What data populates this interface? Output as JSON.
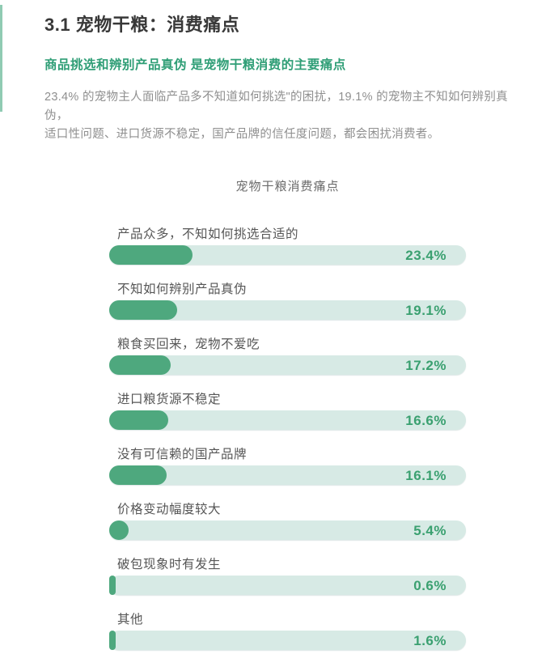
{
  "header": {
    "title": "3.1 宠物干粮：消费痛点",
    "subtitle": "商品挑选和辨别产品真伪 是宠物干粮消费的主要痛点",
    "body_line1": "23.4% 的宠物主人面临产品多不知道如何挑选\"的困扰，19.1% 的宠物主不知如何辨别真伪，",
    "body_line2": "适口性问题、进口货源不稳定，国产品牌的信任度问题，都会困扰消费者。"
  },
  "chart_data": {
    "type": "bar",
    "orientation": "horizontal",
    "title": "宠物干粮消费痛点",
    "categories": [
      "产品众多，不知如何挑选合适的",
      "不知如何辨别产品真伪",
      "粮食买回来，宠物不爱吃",
      "进口粮货源不稳定",
      "没有可信赖的国产品牌",
      "价格变动幅度较大",
      "破包现象时有发生",
      "其他"
    ],
    "values": [
      23.4,
      19.1,
      17.2,
      16.6,
      16.1,
      5.4,
      0.6,
      1.6
    ],
    "value_labels": [
      "23.4%",
      "19.1%",
      "17.2%",
      "16.6%",
      "16.1%",
      "5.4%",
      "0.6%",
      "1.6%"
    ],
    "xlim": [
      0,
      100
    ],
    "grid": false,
    "legend": false,
    "colors": {
      "bar_fill": "#4ea87e",
      "bar_track": "#d7eae5",
      "value_label": "#3aa070",
      "accent": "#7cc2a6"
    }
  }
}
